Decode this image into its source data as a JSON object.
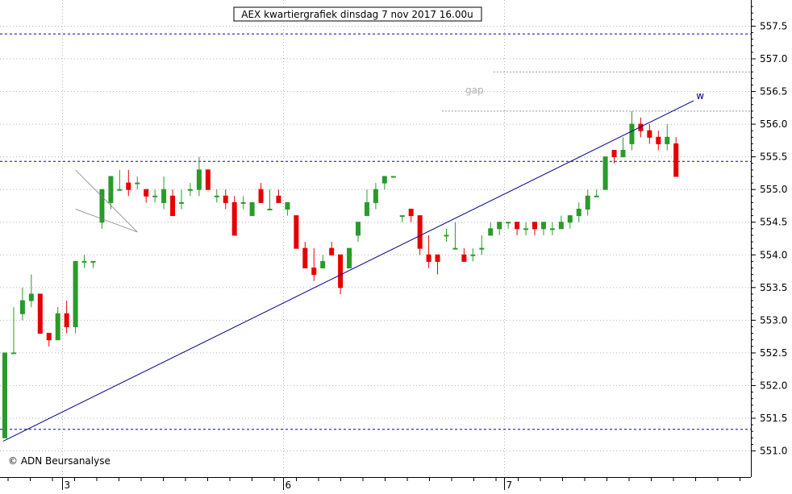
{
  "chart_data": {
    "type": "candlestick",
    "title": "AEX kwartiergrafiek dinsdag 7 nov 2017 16.00u",
    "copyright": "© ADN Beursanalyse",
    "ylim": [
      550.6,
      557.9
    ],
    "grid": true,
    "y_ticks": [
      "551.0",
      "551.5",
      "552.0",
      "552.5",
      "553.0",
      "553.5",
      "554.0",
      "554.5",
      "555.0",
      "555.5",
      "556.0",
      "556.5",
      "557.0",
      "557.5"
    ],
    "x_ticks": [
      "3",
      "6",
      "7"
    ],
    "colors": {
      "up": "#2a9a2a",
      "down": "#e60000",
      "trendline": "#00008b",
      "hline": "#0000b0",
      "ref": "#999999",
      "grid": "#b4b4b4"
    },
    "horizontal_lines": [
      557.38,
      555.43,
      551.33
    ],
    "reference_lines": [
      {
        "label": "gap",
        "levels": [
          556.8,
          556.2
        ]
      }
    ],
    "trendline": {
      "label": "w",
      "start": [
        0,
        551.15
      ],
      "end": [
        76,
        556.3
      ]
    },
    "candles": [
      [
        551.2,
        552.5,
        551.2,
        552.5
      ],
      [
        552.5,
        552.5,
        553.2,
        552.5
      ],
      [
        553.1,
        553.3,
        553.5,
        553.0
      ],
      [
        553.3,
        553.4,
        553.7,
        553.2
      ],
      [
        553.4,
        552.8,
        553.4,
        552.8
      ],
      [
        552.8,
        552.7,
        552.8,
        552.6
      ],
      [
        552.7,
        553.1,
        553.2,
        552.7
      ],
      [
        553.1,
        552.9,
        553.3,
        552.8
      ],
      [
        552.9,
        553.9,
        553.9,
        552.8
      ],
      [
        553.9,
        553.9,
        554.0,
        553.8
      ],
      [
        553.9,
        553.9,
        553.9,
        553.8
      ],
      [
        554.5,
        555.0,
        555.0,
        554.4
      ],
      [
        554.8,
        555.2,
        555.2,
        554.7
      ],
      [
        555.0,
        555.0,
        555.3,
        555.0
      ],
      [
        555.1,
        555.0,
        555.3,
        554.9
      ],
      [
        555.1,
        555.1,
        555.2,
        555.0
      ],
      [
        555.0,
        554.9,
        555.0,
        554.8
      ],
      [
        554.9,
        554.9,
        555.0,
        554.8
      ],
      [
        554.8,
        555.0,
        555.2,
        554.7
      ],
      [
        554.9,
        554.6,
        555.0,
        554.6
      ],
      [
        554.8,
        554.8,
        555.0,
        554.7
      ],
      [
        555.0,
        555.0,
        555.1,
        554.9
      ],
      [
        555.0,
        555.3,
        555.5,
        554.9
      ],
      [
        555.3,
        555.0,
        555.3,
        555.0
      ],
      [
        554.9,
        554.9,
        555.0,
        554.8
      ],
      [
        554.9,
        554.8,
        555.0,
        554.7
      ],
      [
        554.8,
        554.3,
        554.9,
        554.3
      ],
      [
        554.8,
        554.8,
        554.9,
        554.7
      ],
      [
        554.6,
        554.8,
        554.8,
        554.6
      ],
      [
        555.0,
        554.8,
        555.1,
        554.8
      ],
      [
        554.7,
        554.7,
        555.0,
        554.7
      ],
      [
        554.9,
        554.8,
        555.0,
        554.8
      ],
      [
        554.7,
        554.8,
        554.8,
        554.6
      ],
      [
        554.6,
        554.1,
        554.6,
        554.1
      ],
      [
        554.1,
        553.8,
        554.2,
        553.8
      ],
      [
        553.8,
        553.7,
        554.1,
        553.6
      ],
      [
        553.8,
        553.9,
        554.0,
        553.8
      ],
      [
        554.1,
        554.0,
        554.2,
        554.0
      ],
      [
        554.0,
        553.5,
        554.0,
        553.4
      ],
      [
        553.8,
        554.1,
        554.1,
        553.8
      ],
      [
        554.3,
        554.5,
        554.5,
        554.2
      ],
      [
        554.6,
        554.8,
        555.0,
        554.6
      ],
      [
        554.8,
        555.0,
        555.1,
        554.7
      ],
      [
        555.1,
        555.2,
        555.2,
        555.0
      ],
      [
        555.2,
        555.2,
        555.2,
        555.2
      ],
      [
        554.6,
        554.6,
        554.6,
        554.5
      ],
      [
        554.7,
        554.6,
        554.7,
        554.5
      ],
      [
        554.6,
        554.1,
        554.6,
        554.0
      ],
      [
        554.0,
        553.9,
        554.3,
        553.8
      ],
      [
        554.0,
        553.9,
        554.0,
        553.7
      ],
      [
        554.3,
        554.3,
        554.4,
        554.2
      ],
      [
        554.1,
        554.1,
        554.5,
        554.1
      ],
      [
        554.0,
        553.9,
        554.1,
        553.9
      ],
      [
        554.0,
        554.0,
        554.1,
        553.9
      ],
      [
        554.1,
        554.1,
        554.3,
        554.0
      ],
      [
        554.3,
        554.4,
        554.5,
        554.3
      ],
      [
        554.4,
        554.5,
        554.5,
        554.3
      ],
      [
        554.5,
        554.5,
        554.5,
        554.4
      ],
      [
        554.5,
        554.4,
        554.5,
        554.3
      ],
      [
        554.4,
        554.4,
        554.5,
        554.3
      ],
      [
        554.5,
        554.4,
        554.5,
        554.3
      ],
      [
        554.4,
        554.5,
        554.5,
        554.3
      ],
      [
        554.4,
        554.4,
        554.5,
        554.3
      ],
      [
        554.4,
        554.5,
        554.6,
        554.4
      ],
      [
        554.5,
        554.6,
        554.6,
        554.4
      ],
      [
        554.6,
        554.7,
        554.8,
        554.5
      ],
      [
        554.7,
        554.9,
        555.0,
        554.6
      ],
      [
        554.9,
        554.9,
        555.0,
        554.9
      ],
      [
        555.0,
        555.5,
        555.5,
        555.0
      ],
      [
        555.6,
        555.5,
        555.6,
        555.4
      ],
      [
        555.5,
        555.6,
        555.8,
        555.5
      ],
      [
        555.7,
        556.0,
        556.2,
        555.6
      ],
      [
        556.0,
        555.9,
        556.1,
        555.8
      ],
      [
        555.9,
        555.8,
        556.0,
        555.7
      ],
      [
        555.8,
        555.7,
        555.9,
        555.6
      ],
      [
        555.7,
        555.8,
        556.0,
        555.6
      ],
      [
        555.7,
        555.2,
        555.8,
        555.2
      ]
    ]
  }
}
